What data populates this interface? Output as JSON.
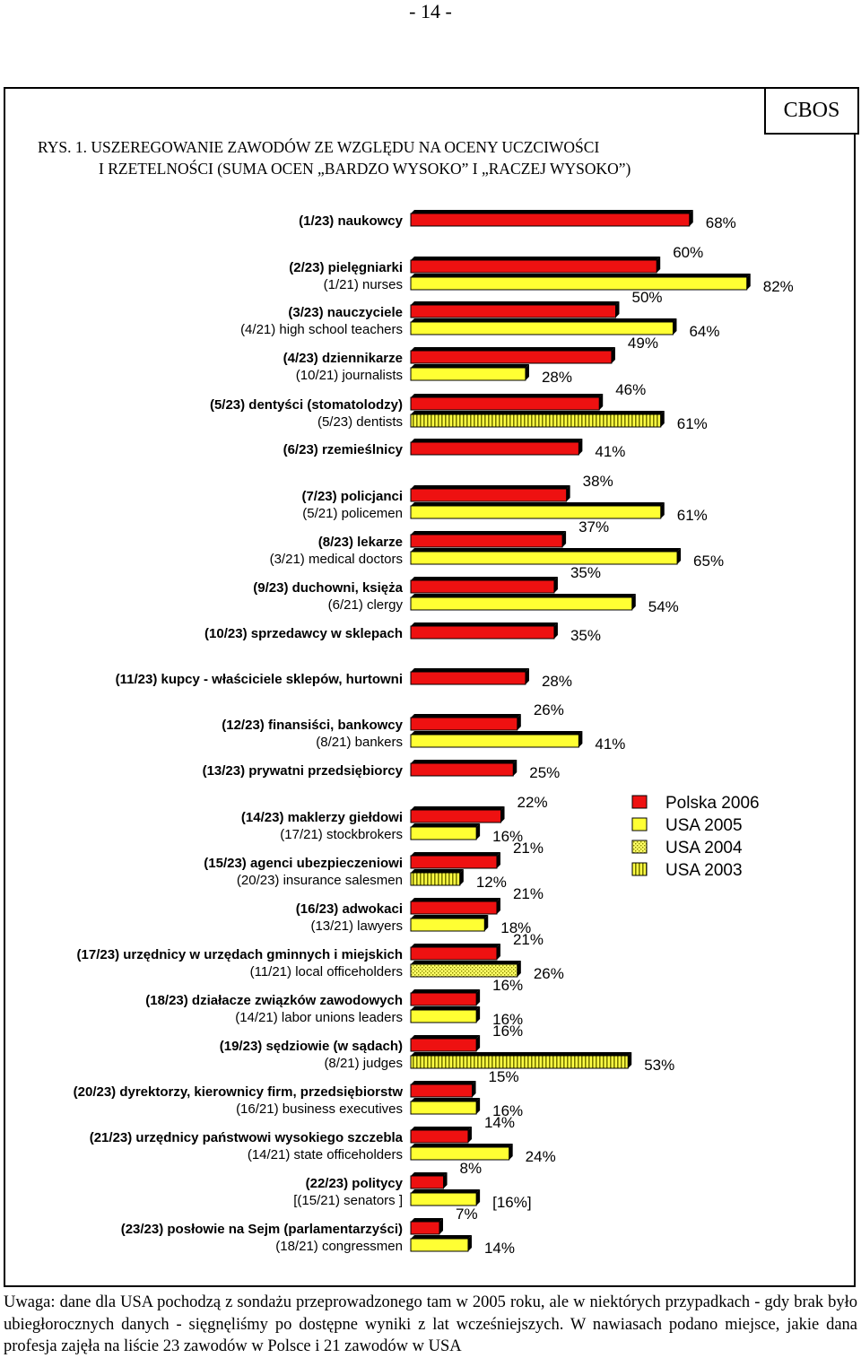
{
  "page_number": "- 14 -",
  "badge": "CBOS",
  "title_line1": "RYS. 1. USZEREGOWANIE ZAWODÓW ZE WZGLĘDU NA OCENY UCZCIWOŚCI",
  "title_line2": "I RZETELNOŚCI (SUMA OCEN „BARDZO WYSOKO” I „RACZEJ WYSOKO”)",
  "footnote": "Uwaga: dane dla USA pochodzą z sondażu przeprowadzonego tam w 2005 roku, ale w niektórych przypadkach - gdy brak było ubiegłorocznych danych - sięgnęliśmy po dostępne wyniki z lat wcześniejszych. W nawiasach podano miejsce, jakie dana profesja zajęła na liście 23 zawodów w Polsce i 21 zawodów w USA",
  "colors": {
    "polska_2006": "#ee1111",
    "usa_2005": "#ffff33",
    "usa_2004": "#eeee66",
    "usa_2003": "#dddd44",
    "depth": "#000000"
  },
  "chart_data": {
    "type": "bar",
    "orientation": "horizontal",
    "unit": "%",
    "xlim": [
      0,
      100
    ],
    "legend": {
      "placement": "right-middle",
      "entries": [
        {
          "name": "Polska 2006",
          "pattern": "solid-red"
        },
        {
          "name": "USA 2005",
          "pattern": "solid-yellow"
        },
        {
          "name": "USA 2004",
          "pattern": "dotted-yellow"
        },
        {
          "name": "USA 2003",
          "pattern": "striped-yellow"
        }
      ]
    },
    "rows": [
      {
        "pl_label": "(1/23) naukowcy",
        "pl_value": 68,
        "pl_display": "68%"
      },
      {
        "pl_label": "(2/23) pielęgniarki",
        "pl_value": 60,
        "pl_display": "60%",
        "us_label": "(1/21) nurses",
        "us_value": 82,
        "us_display": "82%",
        "us_series": "USA 2005"
      },
      {
        "pl_label": "(3/23) nauczyciele",
        "pl_value": 50,
        "pl_display": "50%",
        "us_label": "(4/21) high school teachers",
        "us_value": 64,
        "us_display": "64%",
        "us_series": "USA 2005"
      },
      {
        "pl_label": "(4/23) dziennikarze",
        "pl_value": 49,
        "pl_display": "49%",
        "us_label": "(10/21) journalists",
        "us_value": 28,
        "us_display": "28%",
        "us_series": "USA 2005"
      },
      {
        "pl_label": "(5/23) dentyści (stomatolodzy)",
        "pl_value": 46,
        "pl_display": "46%",
        "us_label": "(5/23) dentists",
        "us_value": 61,
        "us_display": "61%",
        "us_series": "USA 2003"
      },
      {
        "pl_label": "(6/23) rzemieślnicy",
        "pl_value": 41,
        "pl_display": "41%"
      },
      {
        "pl_label": "(7/23) policjanci",
        "pl_value": 38,
        "pl_display": "38%",
        "us_label": "(5/21) policemen",
        "us_value": 61,
        "us_display": "61%",
        "us_series": "USA 2005"
      },
      {
        "pl_label": "(8/23) lekarze",
        "pl_value": 37,
        "pl_display": "37%",
        "us_label": "(3/21) medical doctors",
        "us_value": 65,
        "us_display": "65%",
        "us_series": "USA 2005"
      },
      {
        "pl_label": "(9/23) duchowni, księża",
        "pl_value": 35,
        "pl_display": "35%",
        "us_label": "(6/21) clergy",
        "us_value": 54,
        "us_display": "54%",
        "us_series": "USA 2005"
      },
      {
        "pl_label": "(10/23) sprzedawcy w sklepach",
        "pl_value": 35,
        "pl_display": "35%"
      },
      {
        "pl_label": "(11/23) kupcy - właściciele sklepów, hurtowni",
        "pl_value": 28,
        "pl_display": "28%"
      },
      {
        "pl_label": "(12/23) finansiści, bankowcy",
        "pl_value": 26,
        "pl_display": "26%",
        "us_label": "(8/21) bankers",
        "us_value": 41,
        "us_display": "41%",
        "us_series": "USA 2005"
      },
      {
        "pl_label": "(13/23) prywatni przedsiębiorcy",
        "pl_value": 25,
        "pl_display": "25%"
      },
      {
        "pl_label": "(14/23) maklerzy giełdowi",
        "pl_value": 22,
        "pl_display": "22%",
        "us_label": "(17/21) stockbrokers",
        "us_value": 16,
        "us_display": "16%",
        "us_series": "USA 2005"
      },
      {
        "pl_label": "(15/23) agenci ubezpieczeniowi",
        "pl_value": 21,
        "pl_display": "21%",
        "us_label": "(20/23) insurance salesmen",
        "us_value": 12,
        "us_display": "12%",
        "us_series": "USA 2003"
      },
      {
        "pl_label": "(16/23) adwokaci",
        "pl_value": 21,
        "pl_display": "21%",
        "us_label": "(13/21) lawyers",
        "us_value": 18,
        "us_display": "18%",
        "us_series": "USA 2005"
      },
      {
        "pl_label": "(17/23) urzędnicy w urzędach gminnych i miejskich",
        "pl_value": 21,
        "pl_display": "21%",
        "us_label": "(11/21) local officeholders",
        "us_value": 26,
        "us_display": "26%",
        "us_series": "USA 2004"
      },
      {
        "pl_label": "(18/23) działacze związków zawodowych",
        "pl_value": 16,
        "pl_display": "16%",
        "us_label": "(14/21) labor unions leaders",
        "us_value": 16,
        "us_display": "16%",
        "us_series": "USA 2005"
      },
      {
        "pl_label": "(19/23) sędziowie (w sądach)",
        "pl_value": 16,
        "pl_display": "16%",
        "us_label": "(8/21) judges",
        "us_value": 53,
        "us_display": "53%",
        "us_series": "USA 2003"
      },
      {
        "pl_label": "(20/23) dyrektorzy, kierownicy firm, przedsiębiorstw",
        "pl_value": 15,
        "pl_display": "15%",
        "us_label": "(16/21) business executives",
        "us_value": 16,
        "us_display": "16%",
        "us_series": "USA 2005"
      },
      {
        "pl_label": "(21/23) urzędnicy państwowi wysokiego szczebla",
        "pl_value": 14,
        "pl_display": "14%",
        "us_label": "(14/21) state officeholders",
        "us_value": 24,
        "us_display": "24%",
        "us_series": "USA 2005"
      },
      {
        "pl_label": "(22/23) politycy",
        "pl_value": 8,
        "pl_display": "8%",
        "us_label": "[(15/21) senators ]",
        "us_value": 16,
        "us_display": "[16%]",
        "us_series": "USA 2005"
      },
      {
        "pl_label": "(23/23) posłowie na Sejm (parlamentarzyści)",
        "pl_value": 7,
        "pl_display": "7%",
        "us_label": "(18/21) congressmen",
        "us_value": 14,
        "us_display": "14%",
        "us_series": "USA 2005"
      }
    ]
  }
}
